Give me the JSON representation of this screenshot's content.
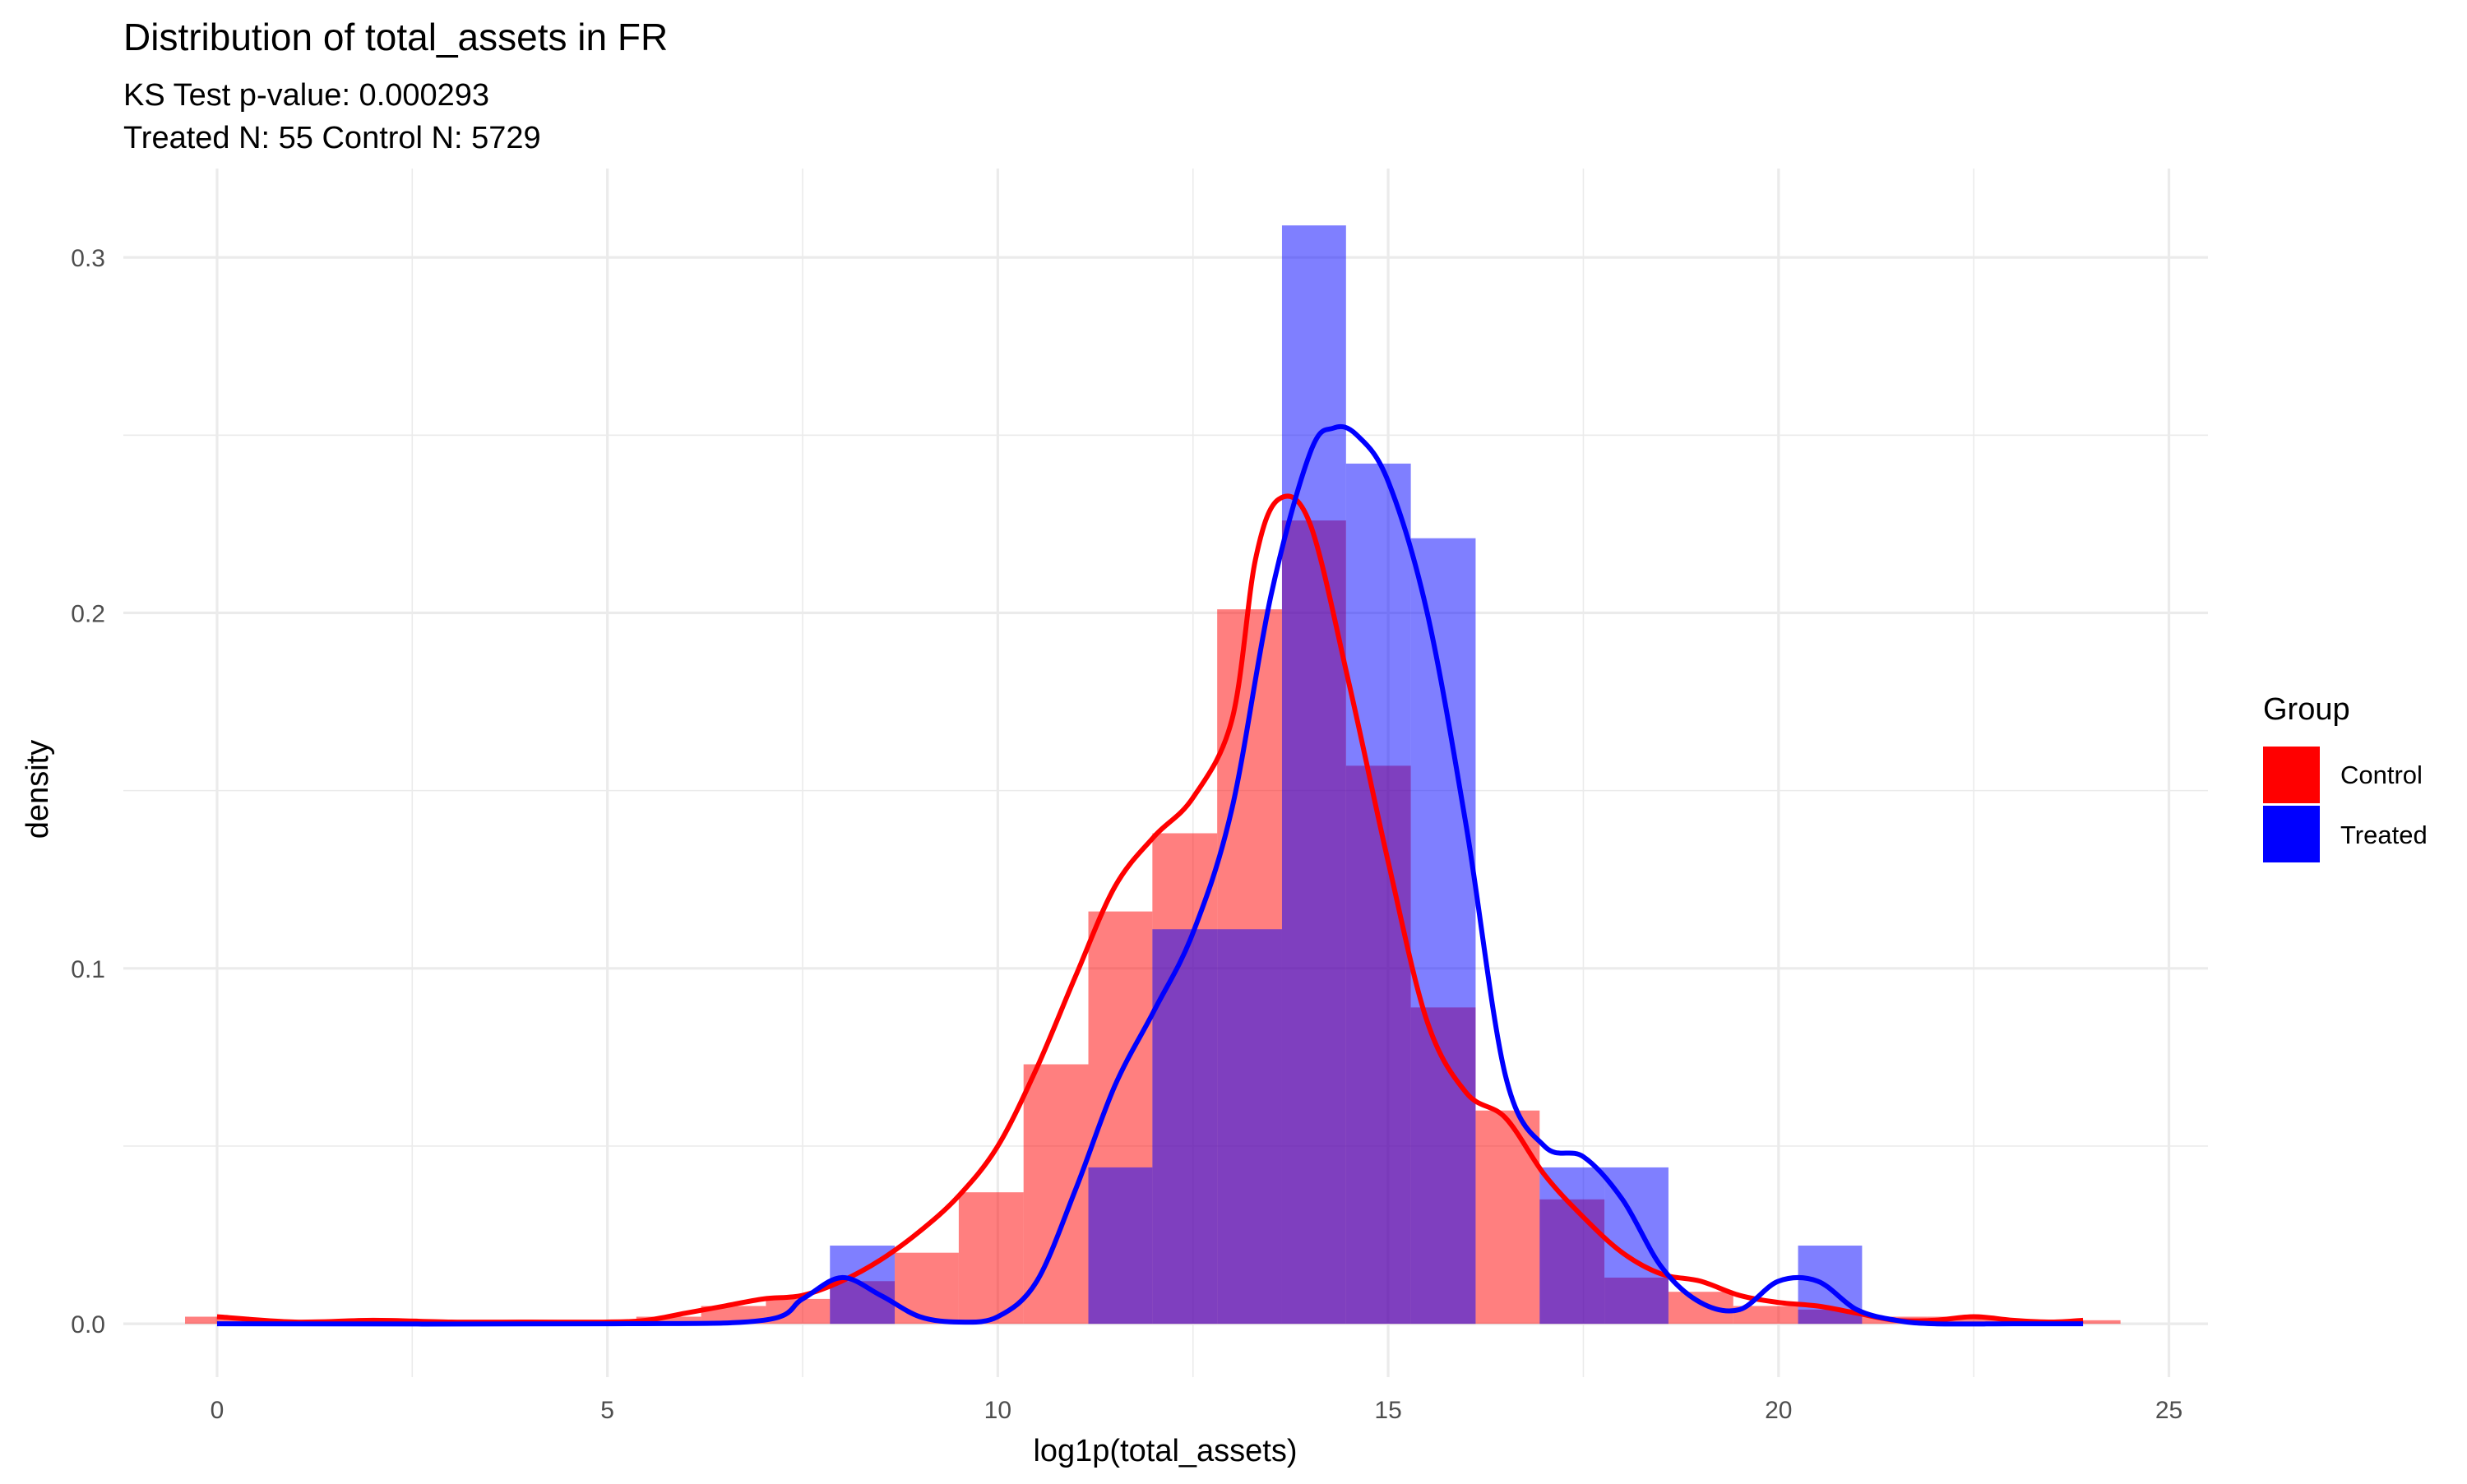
{
  "chart_data": {
    "type": "histogram",
    "title": "Distribution of total_assets in FR",
    "subtitle_lines": [
      "KS Test p-value: 0.000293",
      "Treated N: 55 Control N: 5729"
    ],
    "xlabel": "log1p(total_assets)",
    "ylabel": "density",
    "xlim": [
      -1.2,
      25.5
    ],
    "ylim": [
      -0.015,
      0.325
    ],
    "x_ticks": [
      0,
      5,
      10,
      15,
      20,
      25
    ],
    "x_tick_labels": [
      "0",
      "5",
      "10",
      "15",
      "20",
      "25"
    ],
    "y_ticks": [
      0.0,
      0.1,
      0.2,
      0.3
    ],
    "y_tick_labels": [
      "0.0",
      "0.1",
      "0.2",
      "0.3"
    ],
    "grid": true,
    "legend": {
      "title": "Group",
      "position": "right",
      "entries": [
        {
          "label": "Control",
          "color": "#ff0000"
        },
        {
          "label": "Treated",
          "color": "#0000ff"
        }
      ]
    },
    "bin_width": 0.826,
    "series": [
      {
        "name": "Control",
        "color": "#ff0000",
        "bins": [
          {
            "x0": -0.41,
            "x1": 0.41,
            "density": 0.002
          },
          {
            "x0": 0.41,
            "x1": 1.24,
            "density": 0.0005
          },
          {
            "x0": 1.24,
            "x1": 2.07,
            "density": 0.001
          },
          {
            "x0": 2.07,
            "x1": 2.89,
            "density": 0.0005
          },
          {
            "x0": 2.89,
            "x1": 3.72,
            "density": 0.0005
          },
          {
            "x0": 3.72,
            "x1": 4.55,
            "density": 0.0005
          },
          {
            "x0": 4.55,
            "x1": 5.37,
            "density": 0.0005
          },
          {
            "x0": 5.37,
            "x1": 6.2,
            "density": 0.002
          },
          {
            "x0": 6.2,
            "x1": 7.03,
            "density": 0.005
          },
          {
            "x0": 7.03,
            "x1": 7.85,
            "density": 0.007
          },
          {
            "x0": 7.85,
            "x1": 8.68,
            "density": 0.012
          },
          {
            "x0": 8.68,
            "x1": 9.5,
            "density": 0.02
          },
          {
            "x0": 9.5,
            "x1": 10.33,
            "density": 0.037
          },
          {
            "x0": 10.33,
            "x1": 11.16,
            "density": 0.073
          },
          {
            "x0": 11.16,
            "x1": 11.98,
            "density": 0.116
          },
          {
            "x0": 11.98,
            "x1": 12.81,
            "density": 0.138
          },
          {
            "x0": 12.81,
            "x1": 13.64,
            "density": 0.201
          },
          {
            "x0": 13.64,
            "x1": 14.46,
            "density": 0.226
          },
          {
            "x0": 14.46,
            "x1": 15.29,
            "density": 0.157
          },
          {
            "x0": 15.29,
            "x1": 16.12,
            "density": 0.089
          },
          {
            "x0": 16.12,
            "x1": 16.94,
            "density": 0.06
          },
          {
            "x0": 16.94,
            "x1": 17.77,
            "density": 0.035
          },
          {
            "x0": 17.77,
            "x1": 18.59,
            "density": 0.013
          },
          {
            "x0": 18.59,
            "x1": 19.42,
            "density": 0.009
          },
          {
            "x0": 19.42,
            "x1": 20.25,
            "density": 0.005
          },
          {
            "x0": 20.25,
            "x1": 21.07,
            "density": 0.004
          },
          {
            "x0": 21.07,
            "x1": 21.9,
            "density": 0.002
          },
          {
            "x0": 21.9,
            "x1": 22.73,
            "density": 0.002
          },
          {
            "x0": 22.73,
            "x1": 23.55,
            "density": 0.001
          },
          {
            "x0": 23.55,
            "x1": 24.38,
            "density": 0.001
          }
        ],
        "density_curve": {
          "x": [
            0,
            1,
            2,
            3,
            4,
            5,
            5.5,
            6,
            6.5,
            7,
            7.5,
            8,
            8.5,
            9,
            9.5,
            10,
            10.5,
            11,
            11.5,
            12,
            12.5,
            13,
            13.3,
            13.6,
            14,
            14.5,
            15,
            15.5,
            16,
            16.5,
            17,
            17.5,
            18,
            18.5,
            19,
            19.5,
            20,
            20.5,
            21,
            21.5,
            22,
            22.5,
            23,
            23.5,
            23.9
          ],
          "y": [
            0.002,
            0.0005,
            0.001,
            0.0005,
            0.0005,
            0.0005,
            0.001,
            0.003,
            0.005,
            0.007,
            0.008,
            0.012,
            0.018,
            0.026,
            0.036,
            0.05,
            0.072,
            0.098,
            0.123,
            0.137,
            0.148,
            0.17,
            0.215,
            0.232,
            0.225,
            0.18,
            0.13,
            0.085,
            0.065,
            0.058,
            0.042,
            0.03,
            0.02,
            0.014,
            0.012,
            0.008,
            0.006,
            0.005,
            0.003,
            0.001,
            0.001,
            0.002,
            0.001,
            0.0005,
            0.001
          ]
        }
      },
      {
        "name": "Treated",
        "color": "#0000ff",
        "bins": [
          {
            "x0": 7.85,
            "x1": 8.68,
            "density": 0.022
          },
          {
            "x0": 11.16,
            "x1": 11.98,
            "density": 0.044
          },
          {
            "x0": 11.98,
            "x1": 12.81,
            "density": 0.111
          },
          {
            "x0": 12.81,
            "x1": 13.64,
            "density": 0.111
          },
          {
            "x0": 13.64,
            "x1": 14.46,
            "density": 0.309
          },
          {
            "x0": 14.46,
            "x1": 15.29,
            "density": 0.242
          },
          {
            "x0": 15.29,
            "x1": 16.12,
            "density": 0.221
          },
          {
            "x0": 16.94,
            "x1": 17.77,
            "density": 0.044
          },
          {
            "x0": 17.77,
            "x1": 18.59,
            "density": 0.044
          },
          {
            "x0": 20.25,
            "x1": 21.07,
            "density": 0.022
          }
        ],
        "density_curve": {
          "x": [
            0,
            5,
            7,
            7.5,
            8,
            8.5,
            9,
            9.5,
            10,
            10.5,
            11,
            11.5,
            12,
            12.5,
            13,
            13.5,
            14,
            14.3,
            14.6,
            15,
            15.5,
            16,
            16.5,
            17,
            17.5,
            18,
            18.5,
            19,
            19.5,
            20,
            20.5,
            21,
            21.5,
            22,
            23,
            23.9
          ],
          "y": [
            0,
            0,
            0.001,
            0.007,
            0.013,
            0.008,
            0.002,
            0.0005,
            0.002,
            0.012,
            0.038,
            0.067,
            0.088,
            0.11,
            0.145,
            0.205,
            0.245,
            0.252,
            0.25,
            0.237,
            0.2,
            0.14,
            0.07,
            0.05,
            0.047,
            0.035,
            0.016,
            0.006,
            0.004,
            0.012,
            0.012,
            0.004,
            0.001,
            0,
            0,
            0
          ]
        }
      }
    ]
  }
}
